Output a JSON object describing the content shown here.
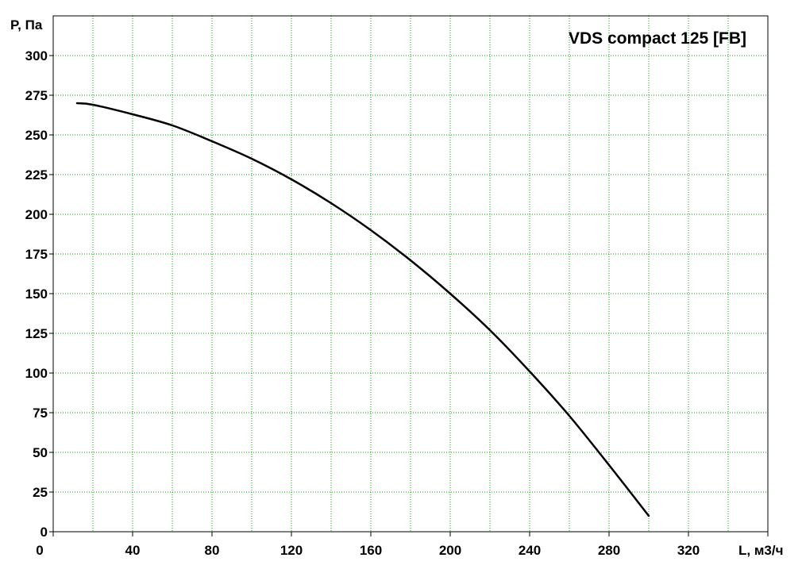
{
  "chart_data": {
    "type": "line",
    "title": "VDS compact 125 [FB]",
    "ylabel": "P, Па",
    "xlabel": "L, м3/ч",
    "xlim": [
      0,
      360
    ],
    "ylim": [
      0,
      325
    ],
    "x_ticks": [
      0,
      40,
      80,
      120,
      160,
      200,
      240,
      280,
      320
    ],
    "y_ticks": [
      0,
      25,
      50,
      75,
      100,
      125,
      150,
      175,
      200,
      225,
      250,
      275,
      300
    ],
    "grid": true,
    "colors": {
      "curve": "#000000",
      "grid": "#00a000",
      "axes": "#000000",
      "background": "#ffffff"
    },
    "series": [
      {
        "x": [
          12,
          20,
          40,
          60,
          80,
          100,
          120,
          140,
          160,
          180,
          200,
          220,
          240,
          260,
          280,
          300
        ],
        "y": [
          270,
          269,
          263,
          256,
          246,
          235,
          222,
          207,
          190,
          171,
          150,
          127,
          101,
          73,
          42,
          10
        ]
      }
    ]
  }
}
